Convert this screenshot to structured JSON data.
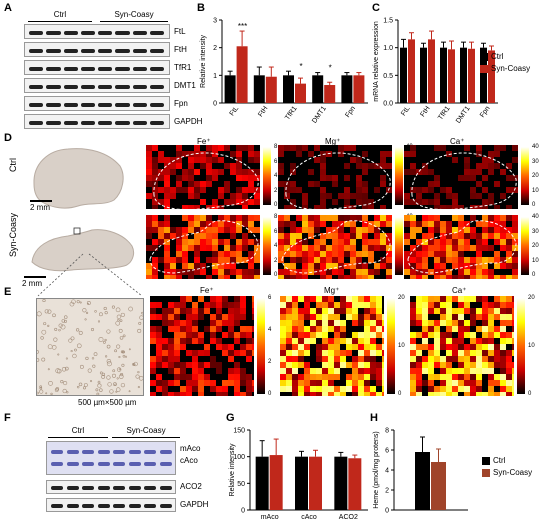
{
  "panel_labels": {
    "A": "A",
    "B": "B",
    "C": "C",
    "D": "D",
    "E": "E",
    "F": "F",
    "G": "G",
    "H": "H"
  },
  "groups": {
    "ctrl": "Ctrl",
    "syn": "Syn-Coasy"
  },
  "blot_a": {
    "rows": [
      "FtL",
      "FtH",
      "TfR1",
      "DMT1",
      "Fpn",
      "GAPDH"
    ]
  },
  "blot_f": {
    "rows": [
      "mAco",
      "cAco",
      "ACO2",
      "GAPDH"
    ]
  },
  "legend": {
    "ctrl": "Ctrl",
    "syn": "Syn-Coasy"
  },
  "colors": {
    "ctrl": "#000000",
    "syn": "#c0281b",
    "syn_h": "#a0442a"
  },
  "maps": {
    "titles": [
      "Fe⁺",
      "Mg⁺",
      "Ca⁺"
    ],
    "row_labels": [
      "Ctrl",
      "Syn-Coasy"
    ],
    "scale_d": "2 mm",
    "scale_e": "500 µm×500 µm",
    "cbar_ctrl": [
      [
        "8",
        "6",
        "4",
        "2",
        "0"
      ],
      [
        "40",
        "30",
        "20",
        "10",
        "0"
      ],
      [
        "40",
        "30",
        "20",
        "10",
        "0"
      ]
    ],
    "cbar_syn": [
      [
        "8",
        "6",
        "4",
        "2",
        "0"
      ],
      [
        "40",
        "30",
        "20",
        "10",
        "0"
      ],
      [
        "40",
        "30",
        "20",
        "10",
        "0"
      ]
    ],
    "cbar_e": [
      [
        "6",
        "4",
        "2",
        "0"
      ],
      [
        "20",
        "10",
        "0"
      ],
      [
        "20",
        "10",
        "0"
      ]
    ]
  },
  "chart_data": [
    {
      "type": "bar",
      "panel": "B",
      "ylabel": "Relative intensity",
      "ylim": [
        0,
        3
      ],
      "yticks": [
        0,
        1,
        2,
        3
      ],
      "categories": [
        "FtL",
        "FtH",
        "TfR1",
        "DMT1",
        "Fpn"
      ],
      "series": [
        {
          "name": "Ctrl",
          "values": [
            1.0,
            1.0,
            1.0,
            1.0,
            1.0
          ],
          "err": [
            0.15,
            0.3,
            0.15,
            0.1,
            0.1
          ]
        },
        {
          "name": "Syn-Coasy",
          "values": [
            2.05,
            0.95,
            0.7,
            0.65,
            1.0
          ],
          "err": [
            0.55,
            0.35,
            0.2,
            0.1,
            0.1
          ]
        }
      ],
      "annotations": [
        "***",
        "",
        "*",
        "*",
        ""
      ]
    },
    {
      "type": "bar",
      "panel": "C",
      "ylabel": "mRNA relative expression",
      "ylim": [
        0,
        1.5
      ],
      "yticks": [
        0.0,
        0.5,
        1.0,
        1.5
      ],
      "categories": [
        "FtL",
        "FtH",
        "TfR1",
        "DMT1",
        "Fpn"
      ],
      "series": [
        {
          "name": "Ctrl",
          "values": [
            1.0,
            1.0,
            1.0,
            1.0,
            1.0
          ],
          "err": [
            0.15,
            0.08,
            0.1,
            0.1,
            0.08
          ]
        },
        {
          "name": "Syn-Coasy",
          "values": [
            1.15,
            1.15,
            0.97,
            0.98,
            0.95
          ],
          "err": [
            0.12,
            0.15,
            0.15,
            0.12,
            0.08
          ]
        }
      ]
    },
    {
      "type": "bar",
      "panel": "G",
      "ylabel": "Relative intensity",
      "ylim": [
        0,
        150
      ],
      "yticks": [
        0,
        50,
        100,
        150
      ],
      "categories": [
        "mAco",
        "cAco",
        "ACO2"
      ],
      "series": [
        {
          "name": "Ctrl",
          "values": [
            100,
            100,
            100
          ],
          "err": [
            30,
            10,
            8
          ]
        },
        {
          "name": "Syn-Coasy",
          "values": [
            103,
            100,
            97
          ],
          "err": [
            30,
            12,
            6
          ]
        }
      ]
    },
    {
      "type": "bar",
      "panel": "H",
      "ylabel": "Heme (pmol/mg protens)",
      "ylim": [
        0,
        8
      ],
      "yticks": [
        0,
        2,
        4,
        6,
        8
      ],
      "categories": [
        ""
      ],
      "series": [
        {
          "name": "Ctrl",
          "values": [
            5.8
          ],
          "err": [
            1.5
          ]
        },
        {
          "name": "Syn-Coasy",
          "values": [
            4.8
          ],
          "err": [
            1.3
          ]
        }
      ]
    }
  ]
}
